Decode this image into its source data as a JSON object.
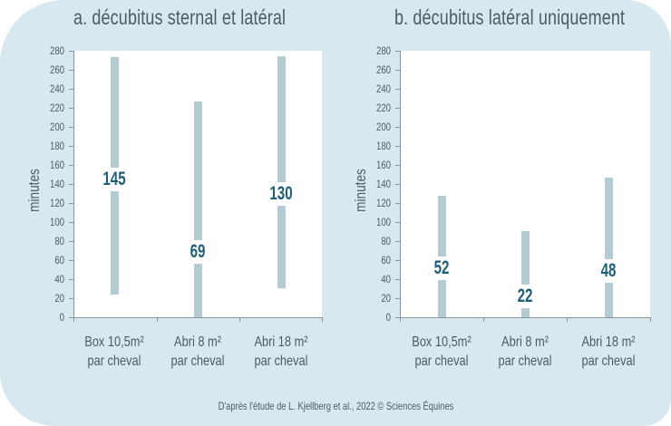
{
  "background_color": "#d7e9ee",
  "bar_color": "#b3cbd1",
  "median_label_color": "#1f5e78",
  "text_color": "#4c5b66",
  "footer": "D'après l'étude de L. Kjellberg et al., 2022 © Sciences Équines",
  "charts": [
    {
      "title": "a. décubitus sternal et latéral",
      "ylabel": "minutes",
      "yticks": [
        "0",
        "20",
        "40",
        "60",
        "80",
        "100",
        "120",
        "140",
        "160",
        "180",
        "200",
        "220",
        "240",
        "260",
        "280"
      ],
      "categories": [
        {
          "line1": "Box 10,5m²",
          "line2": "par cheval"
        },
        {
          "line1": "Abri 8 m²",
          "line2": "par cheval"
        },
        {
          "line1": "Abri 18 m²",
          "line2": "par cheval"
        }
      ],
      "medians": [
        "145",
        "69",
        "130"
      ]
    },
    {
      "title": "b. décubitus latéral uniquement",
      "ylabel": "minutes",
      "yticks": [
        "0",
        "20",
        "40",
        "60",
        "80",
        "100",
        "120",
        "140",
        "160",
        "180",
        "200",
        "220",
        "240",
        "260",
        "280"
      ],
      "categories": [
        {
          "line1": "Box 10,5m²",
          "line2": "par cheval"
        },
        {
          "line1": "Abri 8 m²",
          "line2": "par cheval"
        },
        {
          "line1": "Abri 18 m²",
          "line2": "par cheval"
        }
      ],
      "medians": [
        "52",
        "22",
        "48"
      ]
    }
  ],
  "chart_data": [
    {
      "type": "range-bar",
      "title": "a. décubitus sternal et latéral",
      "xlabel": "",
      "ylabel": "minutes",
      "ylim": [
        0,
        280
      ],
      "yticks": [
        0,
        20,
        40,
        60,
        80,
        100,
        120,
        140,
        160,
        180,
        200,
        220,
        240,
        260,
        280
      ],
      "grid": false,
      "categories": [
        "Box 10,5m² par cheval",
        "Abri 8 m² par cheval",
        "Abri 18 m² par cheval"
      ],
      "series": [
        {
          "name": "min",
          "values": [
            24,
            0,
            30
          ]
        },
        {
          "name": "max",
          "values": [
            273,
            227,
            274
          ]
        },
        {
          "name": "median",
          "values": [
            145,
            69,
            130
          ]
        }
      ]
    },
    {
      "type": "range-bar",
      "title": "b. décubitus latéral uniquement",
      "xlabel": "",
      "ylabel": "minutes",
      "ylim": [
        0,
        280
      ],
      "yticks": [
        0,
        20,
        40,
        60,
        80,
        100,
        120,
        140,
        160,
        180,
        200,
        220,
        240,
        260,
        280
      ],
      "grid": false,
      "categories": [
        "Box 10,5m² par cheval",
        "Abri 8 m² par cheval",
        "Abri 18 m² par cheval"
      ],
      "series": [
        {
          "name": "min",
          "values": [
            0,
            0,
            0
          ]
        },
        {
          "name": "max",
          "values": [
            128,
            90,
            147
          ]
        },
        {
          "name": "median",
          "values": [
            52,
            22,
            48
          ]
        }
      ]
    }
  ]
}
